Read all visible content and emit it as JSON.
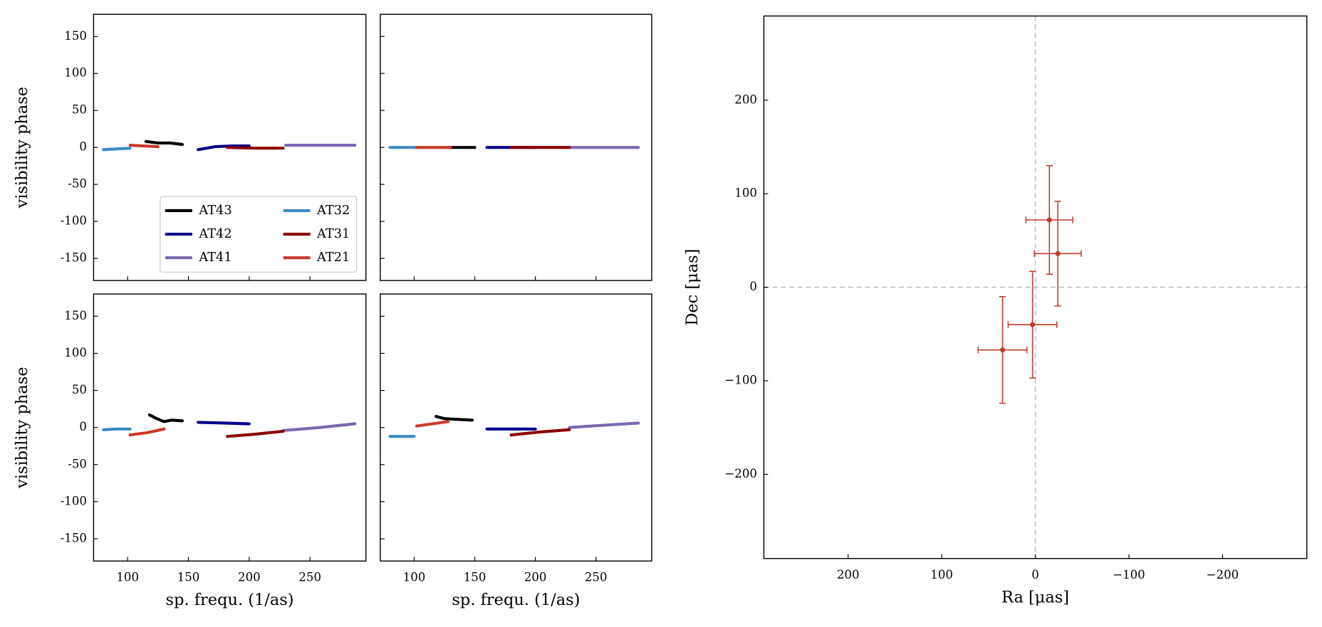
{
  "chart_data": [
    {
      "type": "line",
      "ylabel": "visibility phase",
      "xlim": [
        72,
        296
      ],
      "ylim": [
        -180,
        180
      ],
      "xticks": [
        100,
        150,
        200,
        250
      ],
      "yticks": [
        -150,
        -100,
        -50,
        0,
        50,
        100,
        150
      ],
      "xticklabels": false,
      "yticklabels": true,
      "legend": "lower right",
      "legend_columns": 2,
      "series": [
        {
          "name": "AT43",
          "color": "#000000",
          "x": [
            115,
            125,
            135,
            145
          ],
          "values": [
            8,
            6,
            6,
            4
          ]
        },
        {
          "name": "AT42",
          "color": "#00008b",
          "x": [
            158,
            172,
            186,
            200
          ],
          "values": [
            -3,
            1,
            2,
            2
          ]
        },
        {
          "name": "AT41",
          "color": "#7b68b0",
          "x": [
            230,
            258,
            287
          ],
          "values": [
            3,
            3,
            3
          ]
        },
        {
          "name": "AT32",
          "color": "#3a8cc1",
          "x": [
            80,
            91,
            102
          ],
          "values": [
            -3,
            -2,
            -1
          ]
        },
        {
          "name": "AT31",
          "color": "#8b0000",
          "x": [
            182,
            205,
            228
          ],
          "values": [
            0,
            -1,
            -1
          ]
        },
        {
          "name": "AT21",
          "color": "#c83a2a",
          "x": [
            102,
            113,
            125
          ],
          "values": [
            3,
            2,
            1
          ]
        }
      ]
    },
    {
      "type": "line",
      "xlim": [
        72,
        296
      ],
      "ylim": [
        -180,
        180
      ],
      "xticks": [
        100,
        150,
        200,
        250
      ],
      "yticks": [
        -150,
        -100,
        -50,
        0,
        50,
        100,
        150
      ],
      "xticklabels": false,
      "yticklabels": false,
      "series": [
        {
          "name": "AT43",
          "color": "#000000",
          "x": [
            128,
            150
          ],
          "values": [
            0,
            0
          ]
        },
        {
          "name": "AT42",
          "color": "#00008b",
          "x": [
            160,
            200
          ],
          "values": [
            0,
            0
          ]
        },
        {
          "name": "AT41",
          "color": "#7b68b0",
          "x": [
            228,
            285
          ],
          "values": [
            0,
            0
          ]
        },
        {
          "name": "AT32",
          "color": "#3a8cc1",
          "x": [
            80,
            102
          ],
          "values": [
            0,
            0
          ]
        },
        {
          "name": "AT31",
          "color": "#8b0000",
          "x": [
            180,
            228
          ],
          "values": [
            0,
            0
          ]
        },
        {
          "name": "AT21",
          "color": "#c83a2a",
          "x": [
            102,
            130
          ],
          "values": [
            0,
            0
          ]
        }
      ]
    },
    {
      "type": "line",
      "ylabel": "visibility phase",
      "xlabel": "sp. frequ. (1/as)",
      "xlim": [
        72,
        296
      ],
      "ylim": [
        -180,
        180
      ],
      "xticks": [
        100,
        150,
        200,
        250
      ],
      "yticks": [
        -150,
        -100,
        -50,
        0,
        50,
        100,
        150
      ],
      "xticklabels": true,
      "yticklabels": true,
      "series": [
        {
          "name": "AT43",
          "color": "#000000",
          "x": [
            118,
            124,
            130,
            136,
            145
          ],
          "values": [
            17,
            12,
            8,
            10,
            9
          ]
        },
        {
          "name": "AT42",
          "color": "#00008b",
          "x": [
            158,
            180,
            200
          ],
          "values": [
            7,
            6,
            5
          ]
        },
        {
          "name": "AT41",
          "color": "#7b68b0",
          "x": [
            228,
            258,
            287
          ],
          "values": [
            -4,
            0,
            5
          ]
        },
        {
          "name": "AT32",
          "color": "#3a8cc1",
          "x": [
            80,
            91,
            102
          ],
          "values": [
            -3,
            -2,
            -2
          ]
        },
        {
          "name": "AT31",
          "color": "#8b0000",
          "x": [
            182,
            205,
            228
          ],
          "values": [
            -12,
            -9,
            -5
          ]
        },
        {
          "name": "AT21",
          "color": "#c83a2a",
          "x": [
            102,
            116,
            130
          ],
          "values": [
            -10,
            -7,
            -2
          ]
        }
      ]
    },
    {
      "type": "line",
      "xlabel": "sp. frequ. (1/as)",
      "xlim": [
        72,
        296
      ],
      "ylim": [
        -180,
        180
      ],
      "xticks": [
        100,
        150,
        200,
        250
      ],
      "yticks": [
        -150,
        -100,
        -50,
        0,
        50,
        100,
        150
      ],
      "xticklabels": true,
      "yticklabels": false,
      "series": [
        {
          "name": "AT43",
          "color": "#000000",
          "x": [
            118,
            125,
            135,
            148
          ],
          "values": [
            15,
            12,
            11,
            10
          ]
        },
        {
          "name": "AT42",
          "color": "#00008b",
          "x": [
            160,
            180,
            200
          ],
          "values": [
            -2,
            -2,
            -2
          ]
        },
        {
          "name": "AT41",
          "color": "#7b68b0",
          "x": [
            228,
            256,
            285
          ],
          "values": [
            0,
            3,
            6
          ]
        },
        {
          "name": "AT32",
          "color": "#3a8cc1",
          "x": [
            80,
            90,
            100
          ],
          "values": [
            -12,
            -12,
            -12
          ]
        },
        {
          "name": "AT31",
          "color": "#8b0000",
          "x": [
            180,
            204,
            228
          ],
          "values": [
            -10,
            -6,
            -3
          ]
        },
        {
          "name": "AT21",
          "color": "#c83a2a",
          "x": [
            102,
            115,
            128
          ],
          "values": [
            2,
            5,
            8
          ]
        }
      ]
    },
    {
      "type": "errorbar",
      "xlabel": "Ra [μas]",
      "ylabel": "Dec [μas]",
      "xlim": [
        290,
        -290
      ],
      "ylim": [
        -290,
        290
      ],
      "xticks": [
        200,
        100,
        0,
        {
          "value": -100,
          "label": "−100"
        },
        {
          "value": -200,
          "label": "−200"
        }
      ],
      "yticks": [
        {
          "value": -200,
          "label": "−200"
        },
        {
          "value": -100,
          "label": "−100"
        },
        0,
        100,
        200
      ],
      "xticklabels": true,
      "yticklabels": true,
      "zero_lines": true,
      "color": "#c0392b",
      "x": [
        -15,
        -24,
        3,
        35
      ],
      "values": [
        72,
        36,
        -40,
        -67
      ],
      "xerr": [
        25,
        25,
        26,
        26
      ],
      "yerr": [
        58,
        56,
        57,
        57
      ]
    }
  ]
}
